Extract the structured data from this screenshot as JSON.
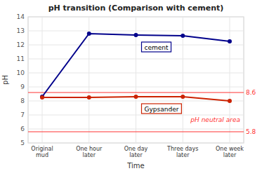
{
  "chart_data": {
    "type": "line",
    "title": "pH transition (Comparison with cement)",
    "x_label": "Time",
    "y_label": "pH",
    "categories": [
      "Original\nmud",
      "One hour\nlater",
      "One day\nlater",
      "Three days\nlater",
      "One week\nlater"
    ],
    "series": [
      {
        "name": "cement",
        "color": "#00008B",
        "marker": "circle",
        "values": [
          8.3,
          12.8,
          12.7,
          12.65,
          12.25
        ]
      },
      {
        "name": "Gypsander",
        "color": "#CC2200",
        "marker": "circle",
        "values": [
          8.25,
          8.25,
          8.3,
          8.3,
          8.0
        ]
      }
    ],
    "ylim": [
      5,
      14
    ],
    "yticks": [
      5,
      6,
      7,
      8,
      9,
      10,
      11,
      12,
      13,
      14
    ],
    "grid": true,
    "reference_lines": [
      {
        "value": 8.6,
        "color": "#FF3333"
      },
      {
        "value": 5.8,
        "color": "#FF3333"
      }
    ],
    "annotations": [
      {
        "text": "pH neutral area",
        "color": "#FF3333"
      }
    ]
  }
}
